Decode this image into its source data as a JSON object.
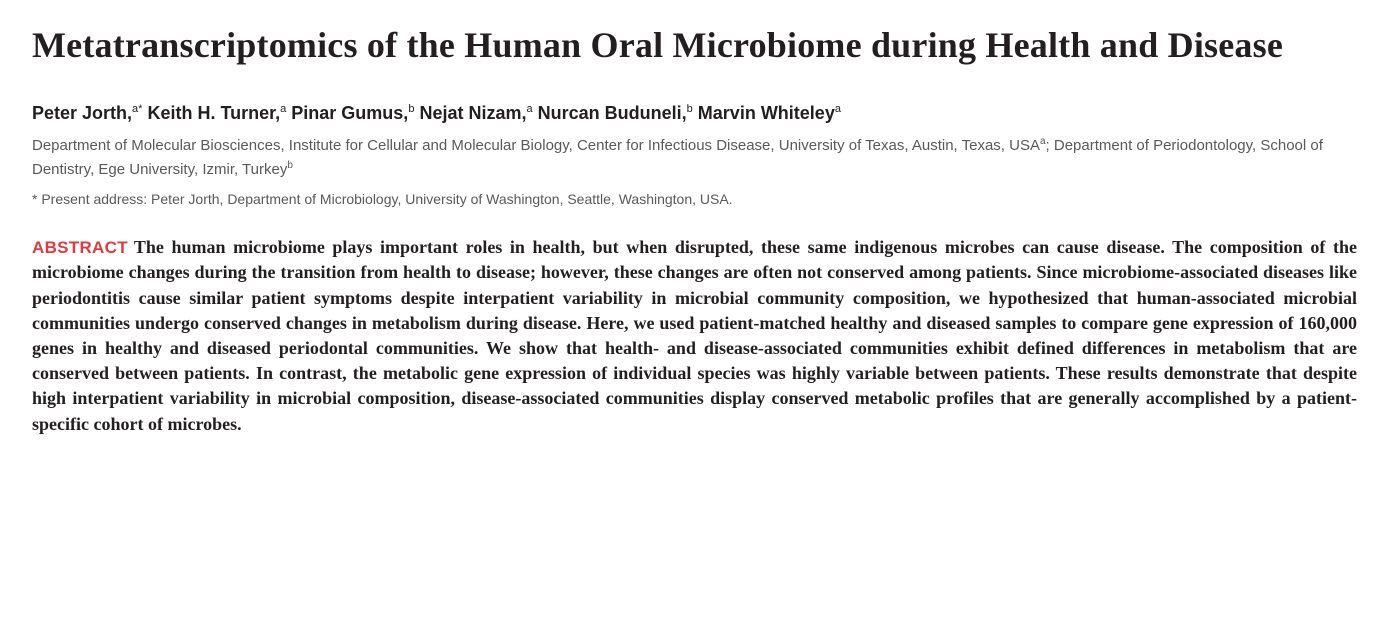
{
  "title": "Metatranscriptomics of the Human Oral Microbiome during Health and Disease",
  "authors": [
    {
      "name": "Peter Jorth,",
      "affil": "a*"
    },
    {
      "name": "Keith H. Turner,",
      "affil": "a"
    },
    {
      "name": "Pinar Gumus,",
      "affil": "b"
    },
    {
      "name": "Nejat Nizam,",
      "affil": "a"
    },
    {
      "name": "Nurcan Buduneli,",
      "affil": "b"
    },
    {
      "name": "Marvin Whiteley",
      "affil": "a"
    }
  ],
  "affiliations_text_1": "Department of Molecular Biosciences, Institute for Cellular and Molecular Biology, Center for Infectious Disease, University of Texas, Austin, Texas, USA",
  "affil_sup_1": "a",
  "affiliations_text_2": "; Department of Periodontology, School of Dentistry, Ege University, Izmir, Turkey",
  "affil_sup_2": "b",
  "present_address": "* Present address: Peter Jorth, Department of Microbiology, University of Washington, Seattle, Washington, USA.",
  "abstract_label": "ABSTRACT",
  "abstract_text": "The human microbiome plays important roles in health, but when disrupted, these same indigenous microbes can cause disease. The composition of the microbiome changes during the transition from health to disease; however, these changes are often not conserved among patients. Since microbiome-associated diseases like periodontitis cause similar patient symptoms despite interpatient variability in microbial community composition, we hypothesized that human-associated microbial communities undergo conserved changes in metabolism during disease. Here, we used patient-matched healthy and diseased samples to compare gene expression of 160,000 genes in healthy and diseased periodontal communities. We show that health- and disease-associated communities exhibit defined differences in metabolism that are conserved between patients. In contrast, the metabolic gene expression of individual species was highly variable between patients. These results demonstrate that despite high interpatient variability in microbial composition, disease-associated communities display conserved metabolic profiles that are generally accomplished by a patient-specific cohort of microbes.",
  "styling": {
    "title_fontsize": 36,
    "title_color": "#231f20",
    "authors_fontsize": 18,
    "authors_color": "#231f20",
    "affiliations_fontsize": 15,
    "affiliations_color": "#58595b",
    "present_address_fontsize": 14,
    "abstract_label_color": "#e03a3e",
    "abstract_fontsize": 18,
    "abstract_color": "#231f20",
    "background_color": "#ffffff"
  }
}
